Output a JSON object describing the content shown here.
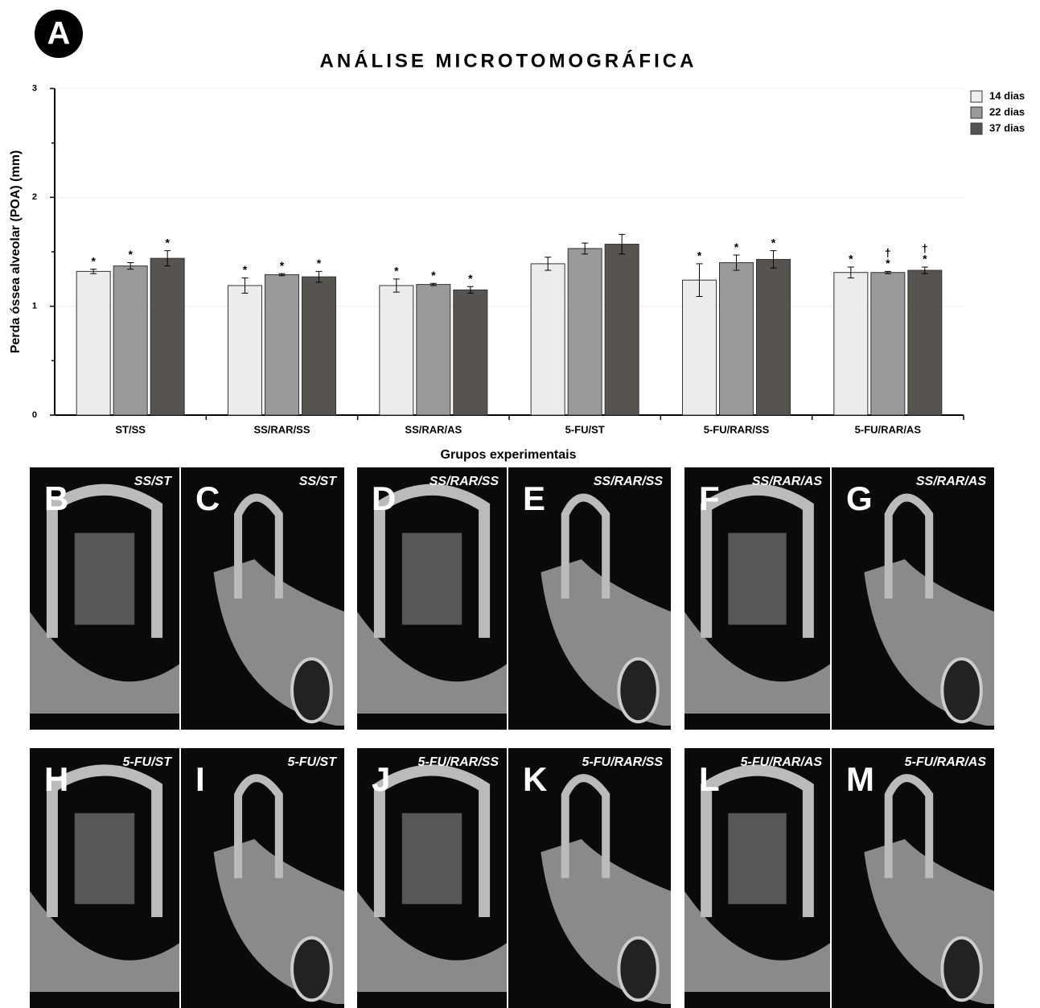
{
  "panel_label": "A",
  "chart_data": {
    "type": "bar",
    "title": "ANÁLISE MICROTOMOGRÁFICA",
    "y_label": "Perda óssea alveolar (POA) (mm)",
    "x_label": "Grupos experimentais",
    "categories": [
      "ST/SS",
      "SS/RAR/SS",
      "SS/RAR/AS",
      "5-FU/ST",
      "5-FU/RAR/SS",
      "5-FU/RAR/AS"
    ],
    "series": [
      {
        "name": "14 dias",
        "color": "#ececec",
        "values": [
          1.32,
          1.19,
          1.19,
          1.39,
          1.24,
          1.31
        ],
        "errors": [
          0.02,
          0.07,
          0.06,
          0.06,
          0.15,
          0.05
        ],
        "significance": [
          [
            "*"
          ],
          [
            "*"
          ],
          [
            "*"
          ],
          [],
          [
            "*"
          ],
          [
            "*"
          ]
        ]
      },
      {
        "name": "22 dias",
        "color": "#9a9a9a",
        "values": [
          1.37,
          1.29,
          1.2,
          1.53,
          1.4,
          1.31
        ],
        "errors": [
          0.03,
          0.01,
          0.01,
          0.05,
          0.07,
          0.01
        ],
        "significance": [
          [
            "*"
          ],
          [
            "*"
          ],
          [
            "*"
          ],
          [],
          [
            "*"
          ],
          [
            "*",
            "†"
          ]
        ]
      },
      {
        "name": "37 dias",
        "color": "#575450",
        "values": [
          1.44,
          1.27,
          1.15,
          1.57,
          1.43,
          1.33
        ],
        "errors": [
          0.07,
          0.05,
          0.03,
          0.09,
          0.08,
          0.03
        ],
        "significance": [
          [
            "*"
          ],
          [
            "*"
          ],
          [
            "*"
          ],
          [],
          [
            "*"
          ],
          [
            "*",
            "†"
          ]
        ]
      }
    ],
    "ylim": [
      0,
      3
    ],
    "yticks": [
      0,
      1,
      2,
      3
    ],
    "minor_yticks": [
      0.5,
      1.5,
      2.5
    ],
    "grid": true,
    "legend": "top-right"
  },
  "panels": [
    {
      "letter": "B",
      "group": "SS/ST"
    },
    {
      "letter": "C",
      "group": "SS/ST"
    },
    {
      "letter": "D",
      "group": "SS/RAR/SS"
    },
    {
      "letter": "E",
      "group": "SS/RAR/SS"
    },
    {
      "letter": "F",
      "group": "SS/RAR/AS"
    },
    {
      "letter": "G",
      "group": "SS/RAR/AS"
    },
    {
      "letter": "H",
      "group": "5-FU/ST"
    },
    {
      "letter": "I",
      "group": "5-FU/ST"
    },
    {
      "letter": "J",
      "group": "5-FU/RAR/SS"
    },
    {
      "letter": "K",
      "group": "5-FU/RAR/SS"
    },
    {
      "letter": "L",
      "group": "5-FU/RAR/AS"
    },
    {
      "letter": "M",
      "group": "5-FU/RAR/AS"
    }
  ]
}
